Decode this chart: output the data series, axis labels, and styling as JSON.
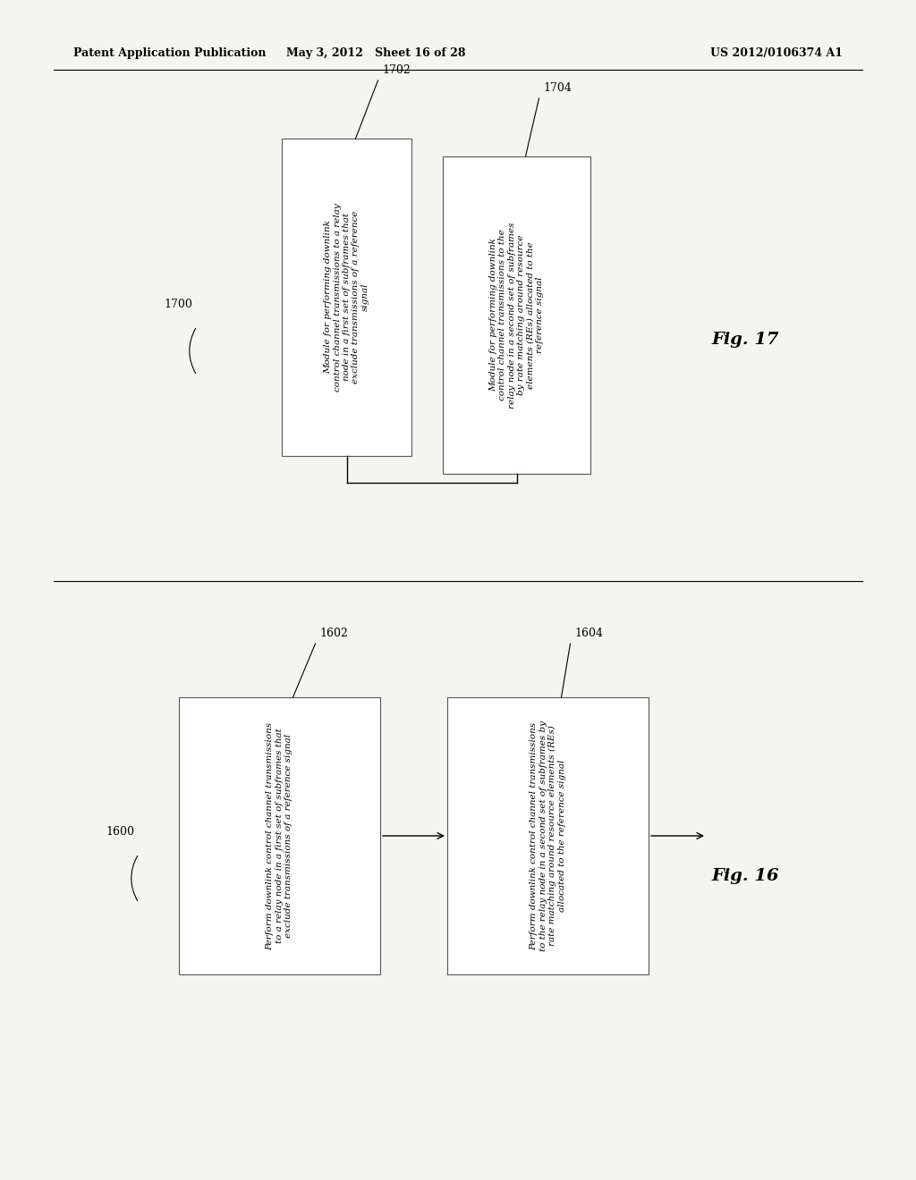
{
  "header_left": "Patent Application Publication",
  "header_mid": "May 3, 2012   Sheet 16 of 28",
  "header_right": "US 2012/0106374 A1",
  "bg_color": "#f5f5f0",
  "fig17": {
    "label": "Fig. 17",
    "bracket_label": "1700",
    "box1_label": "1702",
    "box2_label": "1704",
    "box1_text": "Module for performing downlink\ncontrol channel transmissions to a relay\nnode in a first set of subframes that\nexclude transmissions of a reference\nsignal",
    "box2_text": "Module for performing downlink\ncontrol channel transmissions to the\nrelay node in a second set of subframes\nby rate matching around resource\nelements (REs) allocated to the\nreference signal"
  },
  "fig16": {
    "label": "Fig. 16",
    "bracket_label": "1600",
    "box1_label": "1602",
    "box2_label": "1604",
    "box1_text": "Perform downlink control channel transmissions\nto a relay node in a first set of subframes that\nexclude transmissions of a reference signal",
    "box2_text": "Perform downlink control channel transmissions\nto the relay node in a second set of subframes by\nrate matching around resource elements (REs)\nallocated to the reference signal"
  }
}
